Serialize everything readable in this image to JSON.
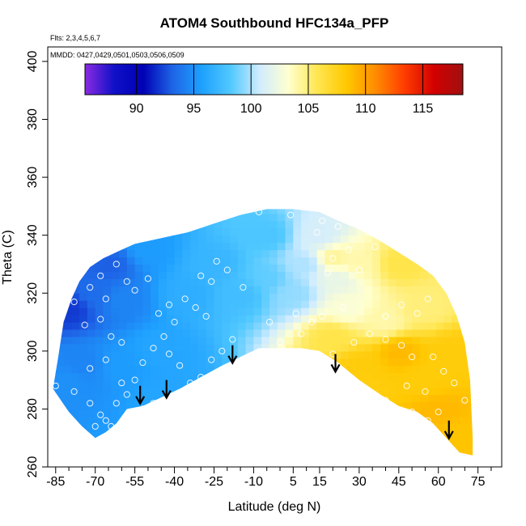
{
  "chart_data": {
    "type": "heatmap",
    "title": "ATOM4 Southbound HFC134a_PFP",
    "flights_label": "Flts: 2,3,4,5,6,7",
    "dates_label": "MMDD: 0427,0429,0501,0503,0506,0509",
    "xlabel": "Latitude (deg N)",
    "ylabel": "Theta (C)",
    "xlim": [
      -88,
      84
    ],
    "ylim": [
      260,
      405
    ],
    "x_ticks": [
      -85,
      -70,
      -55,
      -40,
      -25,
      -10,
      5,
      15,
      30,
      45,
      60,
      75
    ],
    "y_ticks": [
      260,
      280,
      300,
      320,
      340,
      360,
      380,
      400
    ],
    "colorbar": {
      "range": [
        85.5,
        118.5
      ],
      "ticks": [
        90,
        95,
        100,
        105,
        110,
        115
      ],
      "colors": [
        "#8a2be2",
        "#1010c8",
        "#0000b4",
        "#1e64e6",
        "#1ea0ff",
        "#50c8ff",
        "#d0ecff",
        "#ffffd0",
        "#ffe650",
        "#ffc800",
        "#ff8c00",
        "#ff3c00",
        "#d20000",
        "#a01010"
      ]
    },
    "field": {
      "description": "interpolated HFC134a mixing ratio (ppt) on latitude-theta grid",
      "upper_boundary": [
        [
          -86,
          287
        ],
        [
          -84,
          298
        ],
        [
          -82,
          310
        ],
        [
          -79,
          318
        ],
        [
          -76,
          324
        ],
        [
          -72,
          329
        ],
        [
          -67,
          332
        ],
        [
          -60,
          335
        ],
        [
          -55,
          337
        ],
        [
          -45,
          339
        ],
        [
          -35,
          341
        ],
        [
          -25,
          344
        ],
        [
          -15,
          347
        ],
        [
          -5,
          349
        ],
        [
          5,
          349
        ],
        [
          15,
          348
        ],
        [
          22,
          345
        ],
        [
          30,
          342
        ],
        [
          38,
          338
        ],
        [
          45,
          334
        ],
        [
          52,
          330
        ],
        [
          58,
          326
        ],
        [
          63,
          320
        ],
        [
          67,
          312
        ],
        [
          70,
          303
        ],
        [
          72,
          290
        ],
        [
          73,
          270
        ],
        [
          73,
          264
        ]
      ],
      "lower_boundary": [
        [
          73,
          264
        ],
        [
          68,
          265
        ],
        [
          63,
          270
        ],
        [
          58,
          275
        ],
        [
          52,
          279
        ],
        [
          45,
          281
        ],
        [
          38,
          285
        ],
        [
          30,
          290
        ],
        [
          22,
          296
        ],
        [
          15,
          300
        ],
        [
          8,
          301
        ],
        [
          0,
          301
        ],
        [
          -8,
          301
        ],
        [
          -15,
          298
        ],
        [
          -22,
          295
        ],
        [
          -30,
          291
        ],
        [
          -38,
          287
        ],
        [
          -45,
          284
        ],
        [
          -52,
          281
        ],
        [
          -58,
          280
        ],
        [
          -62,
          275
        ],
        [
          -66,
          272
        ],
        [
          -70,
          270
        ],
        [
          -75,
          274
        ],
        [
          -80,
          279
        ],
        [
          -86,
          287
        ]
      ],
      "control_points": [
        [
          -80,
          315,
          92
        ],
        [
          -70,
          320,
          93.5
        ],
        [
          -60,
          318,
          94.5
        ],
        [
          -75,
          295,
          94.5
        ],
        [
          -60,
          295,
          95.5
        ],
        [
          -45,
          300,
          96
        ],
        [
          -35,
          320,
          96.5
        ],
        [
          -25,
          330,
          97
        ],
        [
          -15,
          320,
          97.5
        ],
        [
          -5,
          325,
          98.5
        ],
        [
          5,
          320,
          99.5
        ],
        [
          10,
          330,
          100
        ],
        [
          15,
          340,
          101
        ],
        [
          20,
          332,
          104.5
        ],
        [
          22,
          325,
          102
        ],
        [
          25,
          315,
          103
        ],
        [
          30,
          330,
          104
        ],
        [
          20,
          305,
          106
        ],
        [
          30,
          295,
          108
        ],
        [
          45,
          300,
          109
        ],
        [
          55,
          290,
          108
        ],
        [
          60,
          280,
          109
        ],
        [
          45,
          330,
          106
        ],
        [
          55,
          315,
          105
        ],
        [
          65,
          300,
          108
        ],
        [
          40,
          310,
          104
        ],
        [
          -5,
          340,
          98
        ],
        [
          -40,
          285,
          96
        ],
        [
          -80,
          290,
          95
        ],
        [
          70,
          270,
          108.5
        ],
        [
          -65,
          330,
          93
        ],
        [
          -50,
          335,
          95.5
        ]
      ]
    },
    "samples": [
      [
        -72,
        331
      ],
      [
        -68,
        326
      ],
      [
        -62,
        330
      ],
      [
        -58,
        324
      ],
      [
        -55,
        321
      ],
      [
        -50,
        325
      ],
      [
        -72,
        322
      ],
      [
        -66,
        318
      ],
      [
        -78,
        317
      ],
      [
        -82,
        321
      ],
      [
        -85,
        288
      ],
      [
        -78,
        286
      ],
      [
        -72,
        282
      ],
      [
        -68,
        278
      ],
      [
        -70,
        274
      ],
      [
        -66,
        276
      ],
      [
        -62,
        282
      ],
      [
        -58,
        285
      ],
      [
        -74,
        309
      ],
      [
        -68,
        311
      ],
      [
        -64,
        305
      ],
      [
        -60,
        303
      ],
      [
        -66,
        297
      ],
      [
        -72,
        294
      ],
      [
        -60,
        289
      ],
      [
        -55,
        290
      ],
      [
        -52,
        296
      ],
      [
        -48,
        301
      ],
      [
        -44,
        305
      ],
      [
        -42,
        299
      ],
      [
        -46,
        313
      ],
      [
        -42,
        316
      ],
      [
        -40,
        310
      ],
      [
        -36,
        318
      ],
      [
        -32,
        315
      ],
      [
        -28,
        312
      ],
      [
        -38,
        295
      ],
      [
        -34,
        289
      ],
      [
        -30,
        291
      ],
      [
        -26,
        297
      ],
      [
        -22,
        300
      ],
      [
        -18,
        304
      ],
      [
        -14,
        322
      ],
      [
        -20,
        328
      ],
      [
        -26,
        324
      ],
      [
        -30,
        326
      ],
      [
        -24,
        331
      ],
      [
        -8,
        348
      ],
      [
        4,
        347
      ],
      [
        14,
        341
      ],
      [
        22,
        343
      ],
      [
        20,
        332
      ],
      [
        18,
        327
      ],
      [
        24,
        315
      ],
      [
        16,
        312
      ],
      [
        12,
        310
      ],
      [
        8,
        306
      ],
      [
        0,
        303
      ],
      [
        -4,
        310
      ],
      [
        6,
        313
      ],
      [
        20,
        299
      ],
      [
        28,
        303
      ],
      [
        34,
        306
      ],
      [
        40,
        304
      ],
      [
        46,
        302
      ],
      [
        50,
        298
      ],
      [
        58,
        298
      ],
      [
        62,
        293
      ],
      [
        66,
        289
      ],
      [
        70,
        283
      ],
      [
        55,
        286
      ],
      [
        48,
        288
      ],
      [
        40,
        283
      ],
      [
        34,
        281
      ],
      [
        28,
        284
      ],
      [
        44,
        279
      ],
      [
        50,
        279
      ],
      [
        56,
        276
      ],
      [
        60,
        279
      ],
      [
        40,
        312
      ],
      [
        46,
        316
      ],
      [
        52,
        313
      ],
      [
        56,
        318
      ],
      [
        30,
        328
      ],
      [
        26,
        335
      ],
      [
        36,
        336
      ],
      [
        16,
        345
      ],
      [
        -52,
        280
      ],
      [
        -48,
        282
      ],
      [
        -58,
        277
      ],
      [
        -64,
        274
      ]
    ],
    "arrows": [
      [
        -53,
        288
      ],
      [
        -43,
        290
      ],
      [
        -18,
        302
      ],
      [
        21,
        299
      ],
      [
        64,
        276
      ]
    ]
  }
}
